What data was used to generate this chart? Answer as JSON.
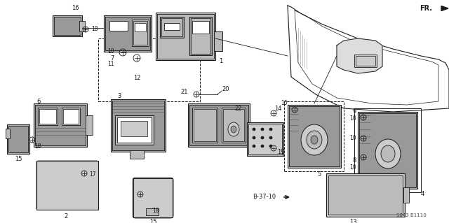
{
  "bg_color": "#ffffff",
  "fig_width": 6.4,
  "fig_height": 3.19,
  "dpi": 100,
  "diagram_code": "S043 B1110",
  "fr_label": "FR.",
  "b_label": "B-37-10",
  "lc": "#1a1a1a",
  "tc": "#1a1a1a",
  "gray1": "#999999",
  "gray2": "#bbbbbb",
  "gray3": "#cccccc",
  "gray_dark": "#555555"
}
